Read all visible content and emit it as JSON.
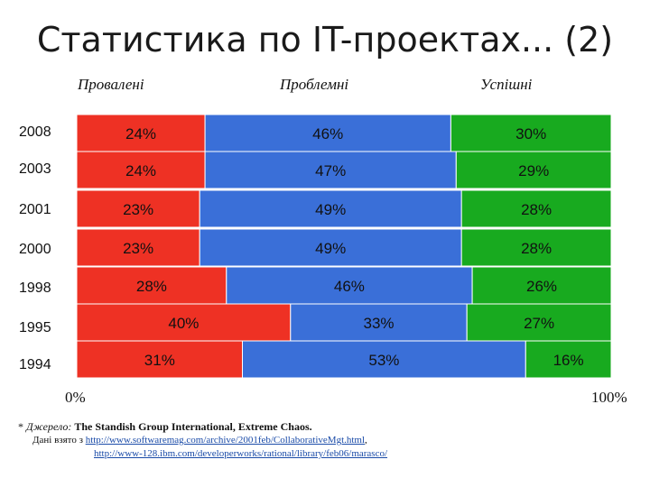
{
  "title": "Статистика по IT-проектах... (2)",
  "chart_data": {
    "type": "bar",
    "orientation": "horizontal",
    "stacked": true,
    "normalized_percent": true,
    "categories": [
      "2008",
      "2003",
      "2001",
      "2000",
      "1998",
      "1995",
      "1994"
    ],
    "series": [
      {
        "name": "Провалені",
        "color": "#ee3124",
        "values": [
          24,
          24,
          23,
          23,
          28,
          40,
          31
        ],
        "labels": [
          "24%",
          "24%",
          "23%",
          "23%",
          "28%",
          "40%",
          "31%"
        ]
      },
      {
        "name": "Проблемні",
        "color": "#3a6fd8",
        "values": [
          46,
          47,
          49,
          49,
          46,
          33,
          53
        ],
        "labels": [
          "46%",
          "47%",
          "49%",
          "49%",
          "46%",
          "33%",
          "53%"
        ]
      },
      {
        "name": "Успішні",
        "color": "#18aa1f",
        "values": [
          30,
          29,
          28,
          28,
          26,
          27,
          16
        ],
        "labels": [
          "30%",
          "29%",
          "28%",
          "28%",
          "26%",
          "27%",
          "16%"
        ]
      }
    ],
    "xlim": [
      0,
      100
    ],
    "x_tick_labels": [
      "0%",
      "100%"
    ],
    "legend": "top"
  },
  "footer": {
    "marker": "*",
    "source_label": "Джерело:",
    "source_text": "The Standish Group International, Extreme Chaos.",
    "taken_from": "Дані взято з",
    "link1": "http://www.softwaremag.com/archive/2001feb/CollaborativeMgt.html",
    "link1_suffix": ",",
    "link2": "http://www-128.ibm.com/developerworks/rational/library/feb06/marasco/"
  }
}
